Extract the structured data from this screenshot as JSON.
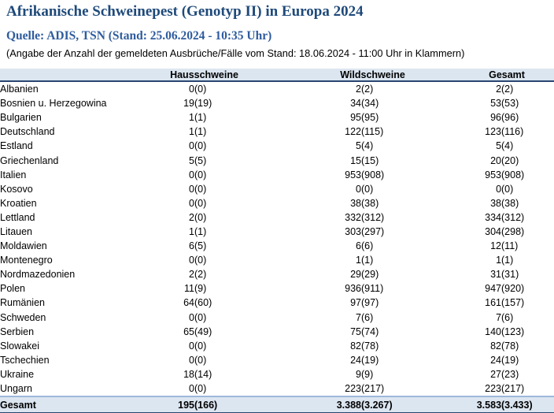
{
  "title": "Afrikanische Schweinepest (Genotyp II) in Europa 2024",
  "source_line": "Quelle: ADIS, TSN (Stand: 25.06.2024 - 10:35 Uhr)",
  "note_line": "(Angabe der Anzahl der gemeldeten Ausbrüche/Fälle vom Stand: 18.06.2024 - 11:00 Uhr in Klammern)",
  "colors": {
    "title_text": "#1F4A7A",
    "source_text": "#2E5C9E",
    "body_text": "#000000",
    "header_row_bg": "#DCE6F1",
    "total_row_bg": "#DCE6F1",
    "dark_blue_border": "#27466F",
    "light_blue_border": "#9CB9D9",
    "page_bg": "#FFFFFF"
  },
  "table": {
    "column_headers": [
      "Hausschweine",
      "Wildschweine",
      "Gesamt"
    ],
    "rows": [
      [
        "Albanien",
        "0",
        "(0)",
        "2",
        "(2)",
        "2",
        "(2)"
      ],
      [
        "Bosnien u. Herzegowina",
        "19",
        "(19)",
        "34",
        "(34)",
        "53",
        "(53)"
      ],
      [
        "Bulgarien",
        "1",
        "(1)",
        "95",
        "(95)",
        "96",
        "(96)"
      ],
      [
        "Deutschland",
        "1",
        "(1)",
        "122",
        "(115)",
        "123",
        "(116)"
      ],
      [
        "Estland",
        "0",
        "(0)",
        "5",
        "(4)",
        "5",
        "(4)"
      ],
      [
        "Griechenland",
        "5",
        "(5)",
        "15",
        "(15)",
        "20",
        "(20)"
      ],
      [
        "Italien",
        "0",
        "(0)",
        "953",
        "(908)",
        "953",
        "(908)"
      ],
      [
        "Kosovo",
        "0",
        "(0)",
        "0",
        "(0)",
        "0",
        "(0)"
      ],
      [
        "Kroatien",
        "0",
        "(0)",
        "38",
        "(38)",
        "38",
        "(38)"
      ],
      [
        "Lettland",
        "2",
        "(0)",
        "332",
        "(312)",
        "334",
        "(312)"
      ],
      [
        "Litauen",
        "1",
        "(1)",
        "303",
        "(297)",
        "304",
        "(298)"
      ],
      [
        "Moldawien",
        "6",
        "(5)",
        "6",
        "(6)",
        "12",
        "(11)"
      ],
      [
        "Montenegro",
        "0",
        "(0)",
        "1",
        "(1)",
        "1",
        "(1)"
      ],
      [
        "Nordmazedonien",
        "2",
        "(2)",
        "29",
        "(29)",
        "31",
        "(31)"
      ],
      [
        "Polen",
        "11",
        "(9)",
        "936",
        "(911)",
        "947",
        "(920)"
      ],
      [
        "Rumänien",
        "64",
        "(60)",
        "97",
        "(97)",
        "161",
        "(157)"
      ],
      [
        "Schweden",
        "0",
        "(0)",
        "7",
        "(6)",
        "7",
        "(6)"
      ],
      [
        "Serbien",
        "65",
        "(49)",
        "75",
        "(74)",
        "140",
        "(123)"
      ],
      [
        "Slowakei",
        "0",
        "(0)",
        "82",
        "(78)",
        "82",
        "(78)"
      ],
      [
        "Tschechien",
        "0",
        "(0)",
        "24",
        "(19)",
        "24",
        "(19)"
      ],
      [
        "Ukraine",
        "18",
        "(14)",
        "9",
        "(9)",
        "27",
        "(23)"
      ],
      [
        "Ungarn",
        "0",
        "(0)",
        "223",
        "(217)",
        "223",
        "(217)"
      ]
    ],
    "total_row": [
      "Gesamt",
      "195",
      "(166)",
      "3.388",
      "(3.267)",
      "3.583",
      "(3.433)"
    ]
  }
}
